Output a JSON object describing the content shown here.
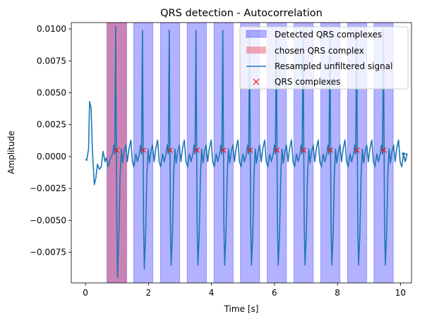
{
  "chart_data": {
    "type": "line",
    "title": "QRS detection - Autocorrelation",
    "xlabel": "Time [s]",
    "ylabel": "Amplitude",
    "xlim": [
      -0.45,
      10.35
    ],
    "ylim": [
      -0.0099,
      0.0105
    ],
    "xticks": [
      0,
      2,
      4,
      6,
      8,
      10
    ],
    "xtick_labels": [
      "0",
      "2",
      "4",
      "6",
      "8",
      "10"
    ],
    "yticks": [
      -0.0075,
      -0.005,
      -0.0025,
      0.0,
      0.0025,
      0.005,
      0.0075,
      0.01
    ],
    "ytick_labels": [
      "−0.0075",
      "−0.0050",
      "−0.0025",
      "0.0000",
      "0.0025",
      "0.0050",
      "0.0075",
      "0.0100"
    ],
    "grid": false,
    "legend_position": "upper right",
    "colors": {
      "detected": "#0000ff",
      "chosen": "#e8495b",
      "signal": "#1f77b4",
      "markers": "#ff0000"
    },
    "legend": [
      {
        "label": "Detected QRS complexes",
        "kind": "patch-detected"
      },
      {
        "label": "chosen QRS complex",
        "kind": "patch-chosen"
      },
      {
        "label": "Resampled unfiltered signal",
        "kind": "line"
      },
      {
        "label": "QRS complexes",
        "kind": "marker"
      }
    ],
    "detected_spans": [
      [
        0.68,
        1.31
      ],
      [
        1.53,
        2.14
      ],
      [
        2.38,
        2.99
      ],
      [
        3.23,
        3.84
      ],
      [
        4.08,
        4.69
      ],
      [
        4.92,
        5.53
      ],
      [
        5.77,
        6.38
      ],
      [
        6.62,
        7.23
      ],
      [
        7.47,
        8.08
      ],
      [
        8.32,
        8.93
      ],
      [
        9.16,
        9.77
      ]
    ],
    "chosen_span": [
      0.68,
      1.31
    ],
    "qrs_markers": {
      "x": [
        0.99,
        1.84,
        2.69,
        3.54,
        4.38,
        5.23,
        6.08,
        6.93,
        7.78,
        8.62,
        9.47
      ],
      "y": 0.0005
    },
    "signal": {
      "baseline": [
        [
          0.0,
          -0.0002
        ],
        [
          0.04,
          -0.0003
        ],
        [
          0.1,
          0.0006
        ],
        [
          0.13,
          0.0043
        ],
        [
          0.18,
          0.0038
        ],
        [
          0.22,
          0.0005
        ],
        [
          0.28,
          -0.0022
        ],
        [
          0.33,
          -0.0017
        ],
        [
          0.38,
          -0.0006
        ],
        [
          0.44,
          -0.001
        ],
        [
          0.5,
          -0.0008
        ],
        [
          0.56,
          0.0004
        ],
        [
          0.62,
          -0.0004
        ],
        [
          0.66,
          -0.0001
        ],
        [
          0.72,
          -0.0008
        ],
        [
          0.76,
          -0.0004
        ],
        [
          0.8,
          -0.0001
        ]
      ],
      "beat_times": [
        0.86,
        1.71,
        2.56,
        3.41,
        4.26,
        5.11,
        5.96,
        6.81,
        7.66,
        8.51,
        9.36
      ],
      "beat_shape": [
        [
          0.0,
          0.0002
        ],
        [
          0.04,
          0.0009
        ],
        [
          0.07,
          0.0002
        ],
        [
          0.1,
          0.0099
        ],
        [
          0.135,
          -0.0052
        ],
        [
          0.16,
          -0.0085
        ],
        [
          0.2,
          -0.0062
        ],
        [
          0.24,
          -0.0015
        ],
        [
          0.28,
          0.0006
        ],
        [
          0.32,
          -0.0005
        ],
        [
          0.37,
          0.0004
        ],
        [
          0.42,
          0.0009
        ],
        [
          0.47,
          -0.0004
        ],
        [
          0.52,
          0.0006
        ],
        [
          0.58,
          0.0013
        ],
        [
          0.63,
          -0.0004
        ],
        [
          0.68,
          -0.0008
        ],
        [
          0.74,
          0.0002
        ],
        [
          0.79,
          -0.0004
        ],
        [
          0.85,
          0.0002
        ]
      ],
      "beat_overrides": {
        "0": {
          "peak": 0.0102,
          "trough": -0.0095
        },
        "1": {
          "trough": -0.0088
        }
      },
      "tail": [
        [
          10.05,
          0.0002
        ],
        [
          10.1,
          0.0003
        ],
        [
          10.14,
          0.0002
        ]
      ]
    }
  }
}
